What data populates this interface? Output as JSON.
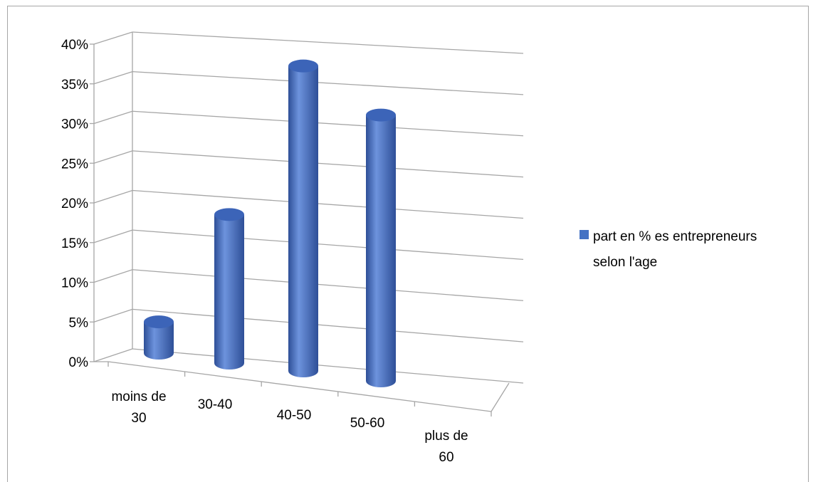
{
  "chart_data": {
    "type": "bar",
    "style": "3d-cylinder",
    "categories": [
      "moins de 30",
      "30-40",
      "40-50",
      "50-60",
      "plus de 60"
    ],
    "category_lines": [
      [
        "moins de",
        "30"
      ],
      [
        "30-40"
      ],
      [
        "40-50"
      ],
      [
        "50-60"
      ],
      [
        "plus de",
        "60"
      ]
    ],
    "series": [
      {
        "name": "part en % es entrepreneurs selon l'age",
        "values": [
          4,
          19,
          39,
          34,
          0
        ]
      }
    ],
    "y_ticks": [
      "0%",
      "5%",
      "10%",
      "15%",
      "20%",
      "25%",
      "30%",
      "35%",
      "40%"
    ],
    "ylim": [
      0,
      40
    ],
    "grid": true,
    "legend": {
      "position": "right",
      "lines": [
        "part en % es entrepreneurs",
        "selon l'age"
      ]
    },
    "colors": {
      "bar": "#4472c4",
      "bar_dark": "#2e4f97",
      "bar_light": "#6d93dd",
      "top": "#3c64b8",
      "grid": "#a6a6a6"
    }
  }
}
